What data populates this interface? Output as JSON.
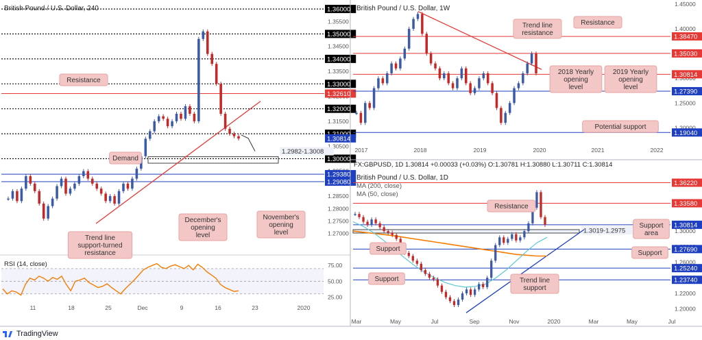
{
  "brand": {
    "name": "TradingView"
  },
  "chart_data": [
    {
      "id": "h4",
      "type": "line",
      "title": "British Pound / U.S. Dollar, 240",
      "y_range": [
        1.2625,
        1.3625
      ],
      "y_ticks": [
        "1.36000",
        "1.35500",
        "1.35000",
        "1.34500",
        "1.34000",
        "1.33500",
        "1.33000",
        "1.32500",
        "1.32000",
        "1.31500",
        "1.31000",
        "1.30500",
        "1.30000",
        "1.29500",
        "1.29000",
        "1.28500",
        "1.28000",
        "1.27500",
        "1.27000"
      ],
      "x_ticks": [
        "11",
        "18",
        "25",
        "Dec",
        "9",
        "16",
        "23",
        "2020"
      ],
      "levels": [
        {
          "value": 1.36,
          "label": "1.36000",
          "style": "dotted",
          "color": "#000000"
        },
        {
          "value": 1.35,
          "label": "1.35000",
          "style": "dotted",
          "color": "#000000"
        },
        {
          "value": 1.34,
          "label": "1.34000",
          "style": "dotted",
          "color": "#000000"
        },
        {
          "value": 1.33,
          "label": "1.33000",
          "style": "dotted",
          "color": "#000000"
        },
        {
          "value": 1.3261,
          "label": "1.32610",
          "style": "solid",
          "color": "#e53935"
        },
        {
          "value": 1.32,
          "label": "1.32000",
          "style": "dotted",
          "color": "#000000"
        },
        {
          "value": 1.31,
          "label": "1.31000",
          "style": "dotted",
          "color": "#000000"
        },
        {
          "value": 1.30814,
          "label": "1.30814",
          "style": "none",
          "color": "#1e3fbf"
        },
        {
          "value": 1.3,
          "label": "1.30000",
          "style": "dotted",
          "color": "#000000"
        },
        {
          "value": 1.2938,
          "label": "1.29380",
          "style": "solid",
          "color": "#1e3fbf"
        },
        {
          "value": 1.2908,
          "label": "1.29080",
          "style": "solid",
          "color": "#1e3fbf"
        }
      ],
      "zone": {
        "label": "1.2982-1.3008",
        "low": 1.2982,
        "high": 1.3008
      },
      "price_series": [
        1.284,
        1.287,
        1.283,
        1.288,
        1.293,
        1.29,
        1.287,
        1.282,
        1.276,
        1.281,
        1.284,
        1.289,
        1.292,
        1.286,
        1.288,
        1.29,
        1.293,
        1.295,
        1.292,
        1.29,
        1.288,
        1.286,
        1.283,
        1.285,
        1.282,
        1.287,
        1.29,
        1.288,
        1.292,
        1.296,
        1.301,
        1.308,
        1.311,
        1.315,
        1.317,
        1.316,
        1.313,
        1.315,
        1.318,
        1.316,
        1.321,
        1.318,
        1.315,
        1.348,
        1.351,
        1.342,
        1.338,
        1.33,
        1.318,
        1.312,
        1.31,
        1.309,
        1.3081
      ],
      "annotations": [
        "Resistance",
        "Demand",
        "Trend line support-turned resistance",
        "December's opening level",
        "November's opening level"
      ],
      "rsi": {
        "label": "RSI (14, close)",
        "ticks": [
          "75.00",
          "50.00",
          "25.00"
        ],
        "values": [
          38,
          30,
          35,
          33,
          28,
          45,
          55,
          52,
          58,
          55,
          50,
          56,
          53,
          58,
          45,
          35,
          50,
          52,
          55,
          48,
          44,
          40,
          42,
          46,
          40,
          35,
          30,
          38,
          45,
          52,
          60,
          68,
          72,
          75,
          78,
          72,
          70,
          74,
          76,
          73,
          70,
          75,
          68,
          77,
          72,
          65,
          60,
          55,
          45,
          40,
          37,
          34,
          35
        ]
      }
    },
    {
      "id": "w1",
      "type": "line",
      "title": "British Pound / U.S. Dollar, 1W",
      "y_range": [
        1.17,
        1.45
      ],
      "y_ticks": [
        "1.45000",
        "1.40000",
        "1.35000",
        "1.30000",
        "1.25000",
        "1.20000"
      ],
      "x_ticks": [
        "2017",
        "2018",
        "2019",
        "2020",
        "2021",
        "2022"
      ],
      "levels": [
        {
          "value": 1.3847,
          "label": "1.38470",
          "color": "#e53935"
        },
        {
          "value": 1.3503,
          "label": "1.35030",
          "color": "#e53935"
        },
        {
          "value": 1.30814,
          "label": "1.30814",
          "color": "#e53935"
        },
        {
          "value": 1.2739,
          "label": "1.27390",
          "color": "#1e3fbf"
        },
        {
          "value": 1.1904,
          "label": "1.19040",
          "color": "#1e3fbf"
        }
      ],
      "price_series": [
        1.23,
        1.21,
        1.25,
        1.24,
        1.28,
        1.3,
        1.29,
        1.31,
        1.33,
        1.32,
        1.34,
        1.36,
        1.4,
        1.42,
        1.43,
        1.39,
        1.35,
        1.33,
        1.32,
        1.3,
        1.31,
        1.29,
        1.28,
        1.3,
        1.32,
        1.29,
        1.27,
        1.28,
        1.3,
        1.31,
        1.29,
        1.27,
        1.24,
        1.21,
        1.23,
        1.25,
        1.28,
        1.29,
        1.31,
        1.33,
        1.35,
        1.31
      ],
      "annotations": [
        "Trend line resistance",
        "Resistance",
        "2018 Yearly opening level",
        "2019 Yearly opening level",
        "Potential support"
      ]
    },
    {
      "id": "d1",
      "type": "line",
      "title": "British Pound / U.S. Dollar, 1D",
      "ohlc": {
        "symbol": "FX:GBPUSD, 1D",
        "price": "1.30814",
        "change": "+0.00033 (+0.03%)",
        "o": "1.30781",
        "h": "1.30880",
        "l": "1.30711",
        "c": "1.30814"
      },
      "ma_labels": [
        "MA (200, close)",
        "MA (50, close)"
      ],
      "y_range": [
        1.19,
        1.375
      ],
      "y_ticks": [
        "1.30000",
        "1.28000",
        "1.26000",
        "1.24000",
        "1.22000",
        "1.20000"
      ],
      "x_ticks": [
        "Mar",
        "May",
        "Jul",
        "Sep",
        "Nov",
        "2020",
        "Mar",
        "May",
        "Jul"
      ],
      "levels": [
        {
          "value": 1.3622,
          "label": "1.36220",
          "color": "#e53935"
        },
        {
          "value": 1.3358,
          "label": "1.33580",
          "color": "#e53935"
        },
        {
          "value": 1.30814,
          "label": "1.30814",
          "color": "#1e3fbf"
        },
        {
          "value": 1.2769,
          "label": "1.27690",
          "color": "#1e3fbf"
        },
        {
          "value": 1.2524,
          "label": "1.25240",
          "color": "#1e3fbf"
        },
        {
          "value": 1.2374,
          "label": "1.23740",
          "color": "#1e3fbf"
        }
      ],
      "zone": {
        "label": "1.3019-1.2975",
        "low": 1.2975,
        "high": 1.3019
      },
      "price_series": [
        1.322,
        1.318,
        1.312,
        1.308,
        1.315,
        1.31,
        1.305,
        1.3,
        1.298,
        1.295,
        1.29,
        1.28,
        1.272,
        1.268,
        1.262,
        1.258,
        1.25,
        1.245,
        1.24,
        1.238,
        1.23,
        1.222,
        1.215,
        1.21,
        1.205,
        1.212,
        1.22,
        1.225,
        1.218,
        1.225,
        1.232,
        1.228,
        1.24,
        1.262,
        1.282,
        1.292,
        1.285,
        1.29,
        1.296,
        1.288,
        1.292,
        1.3,
        1.31,
        1.33,
        1.35,
        1.318,
        1.308
      ],
      "ma200": [
        1.3,
        1.2985,
        1.297,
        1.2955,
        1.294,
        1.292,
        1.29,
        1.288,
        1.286,
        1.284,
        1.282,
        1.28,
        1.278,
        1.276,
        1.274,
        1.272,
        1.27,
        1.269,
        1.268,
        1.268
      ],
      "ma50": [
        1.312,
        1.306,
        1.298,
        1.288,
        1.277,
        1.266,
        1.256,
        1.247,
        1.24,
        1.234,
        1.23,
        1.228,
        1.229,
        1.232,
        1.24,
        1.25,
        1.262,
        1.274,
        1.285,
        1.292
      ],
      "annotations": [
        "Resistance",
        "Support",
        "Support",
        "Support area",
        "Support",
        "Trend line support"
      ]
    }
  ]
}
